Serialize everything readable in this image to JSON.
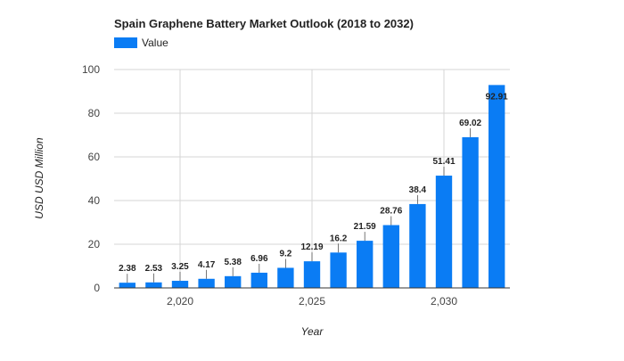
{
  "chart_data": {
    "type": "bar",
    "title": "Spain Graphene Battery Market Outlook (2018 to 2032)",
    "xlabel": "Year",
    "ylabel": "USD USD Million",
    "legend": {
      "position": "top-left",
      "entries": [
        "Value"
      ]
    },
    "grid": true,
    "ylim": [
      0,
      100
    ],
    "yticks": [
      0,
      20,
      40,
      60,
      80,
      100
    ],
    "xlim": [
      2017.5,
      2032.5
    ],
    "xticks": [
      2020,
      2025,
      2030
    ],
    "xtick_labels": [
      "2,020",
      "2,025",
      "2,030"
    ],
    "x": [
      2018,
      2019,
      2020,
      2021,
      2022,
      2023,
      2024,
      2025,
      2026,
      2027,
      2028,
      2029,
      2030,
      2031,
      2032
    ],
    "series": [
      {
        "name": "Value",
        "color": "#0a7cf4",
        "values": [
          2.38,
          2.53,
          3.25,
          4.17,
          5.38,
          6.96,
          9.2,
          12.19,
          16.2,
          21.59,
          28.76,
          38.4,
          51.41,
          69.02,
          92.91
        ],
        "labels": [
          "2.38",
          "2.53",
          "3.25",
          "4.17",
          "5.38",
          "6.96",
          "9.2",
          "12.19",
          "16.2",
          "21.59",
          "28.76",
          "38.4",
          "51.41",
          "69.02",
          "92.91"
        ]
      }
    ]
  }
}
